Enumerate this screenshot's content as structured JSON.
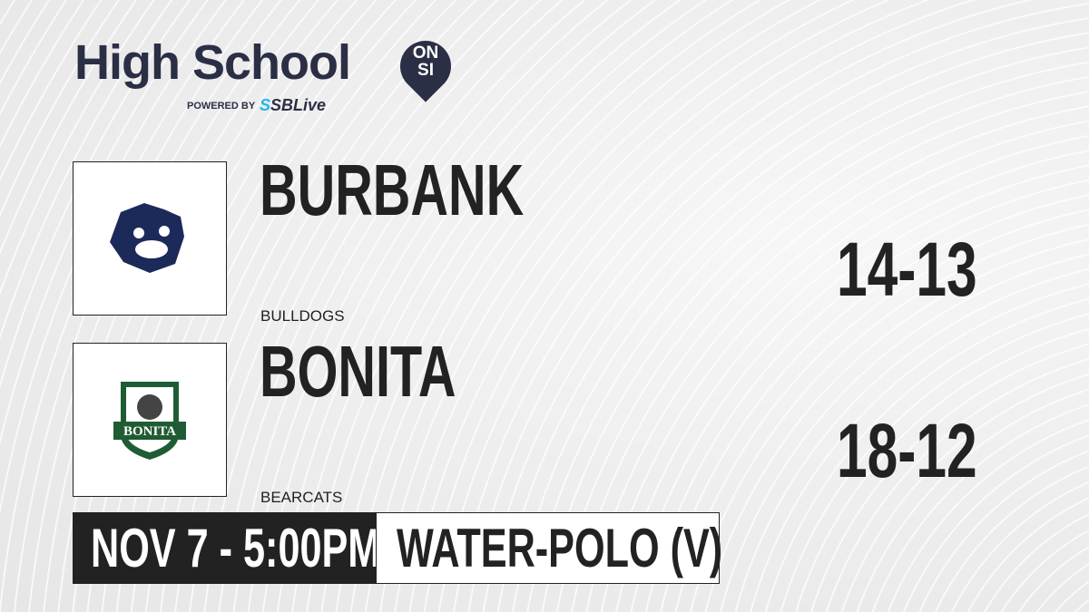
{
  "brand": {
    "title": "High School",
    "badge_top": "ON",
    "badge_bottom": "SI",
    "powered_by": "POWERED BY",
    "partner_prefix": "S",
    "partner": "SBLive",
    "colors": {
      "navy": "#2b2f45",
      "accent": "#1fb6ee"
    }
  },
  "teams": [
    {
      "name": "BURBANK",
      "mascot": "BULLDOGS",
      "record": "14-13",
      "logo_icon": "bulldog-logo-icon",
      "color": "#1c2a5a"
    },
    {
      "name": "BONITA",
      "mascot": "BEARCATS",
      "record": "18-12",
      "logo_icon": "bearcat-shield-logo-icon",
      "color": "#1f5c34",
      "logo_text": "BONITA"
    }
  ],
  "game": {
    "datetime": "NOV 7 - 5:00PM",
    "sport": "WATER-POLO (V)"
  }
}
